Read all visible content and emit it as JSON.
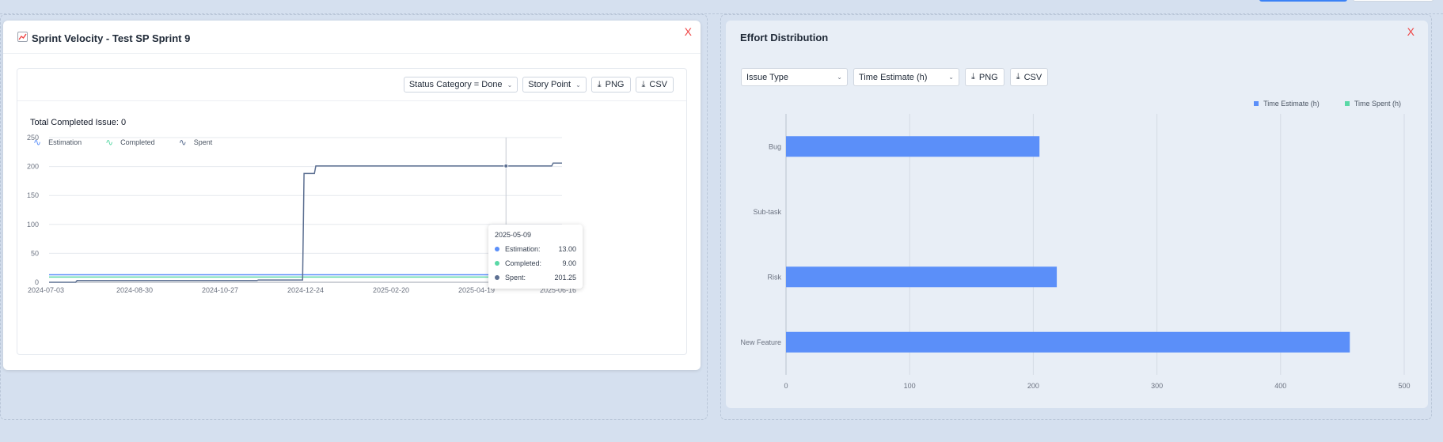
{
  "left_card": {
    "title": "Sprint Velocity - Test SP Sprint 9",
    "title_icon": "chart-increasing-icon",
    "close_label": "X",
    "filters": {
      "status": "Status Category = Done",
      "metric": "Story Point"
    },
    "png_label": "PNG",
    "csv_label": "CSV",
    "total_label": "Total Completed Issue: 0"
  },
  "right_card": {
    "title": "Effort Distribution",
    "close_label": "X",
    "filters": {
      "group": "Issue Type",
      "metric": "Time Estimate (h)"
    },
    "png_label": "PNG",
    "csv_label": "CSV"
  },
  "tooltip": {
    "date": "2025-05-09",
    "rows": [
      {
        "label": "Estimation:",
        "value": "13.00",
        "color": "#5b8ff9"
      },
      {
        "label": "Completed:",
        "value": "9.00",
        "color": "#5ad8a6"
      },
      {
        "label": "Spent:",
        "value": "201.25",
        "color": "#5d7092"
      }
    ]
  },
  "chart_data": [
    {
      "type": "line",
      "title": "Total Completed Issue: 0",
      "x_ticks": [
        "2024-07-03",
        "2024-08-30",
        "2024-10-27",
        "2024-12-24",
        "2025-02-20",
        "2025-04-19",
        "2025-06-16"
      ],
      "y_ticks": [
        "0",
        "50",
        "100",
        "150",
        "200",
        "250"
      ],
      "ylim": [
        0,
        250
      ],
      "xlim": [
        "2024-07-03",
        "2025-06-16"
      ],
      "legend": "top-left",
      "series": [
        {
          "name": "Estimation",
          "color": "#5b8ff9",
          "points": [
            [
              "2024-07-03",
              13
            ],
            [
              "2025-06-16",
              13
            ]
          ]
        },
        {
          "name": "Completed",
          "color": "#5ad8a6",
          "points": [
            [
              "2024-07-03",
              9
            ],
            [
              "2025-06-16",
              9
            ]
          ]
        },
        {
          "name": "Spent",
          "color": "#5d7092",
          "points": [
            [
              "2024-07-03",
              0
            ],
            [
              "2024-07-21",
              0
            ],
            [
              "2024-07-22",
              3
            ],
            [
              "2024-11-21",
              3
            ],
            [
              "2024-11-22",
              4
            ],
            [
              "2024-12-22",
              4
            ],
            [
              "2024-12-23",
              188
            ],
            [
              "2024-12-30",
              188
            ],
            [
              "2024-12-31",
              201
            ],
            [
              "2025-06-09",
              201
            ],
            [
              "2025-06-10",
              206
            ],
            [
              "2025-06-16",
              206
            ]
          ]
        }
      ],
      "highlight_date": "2025-05-09"
    },
    {
      "type": "bar",
      "orientation": "horizontal",
      "categories": [
        "Bug",
        "Sub-task",
        "Risk",
        "New Feature"
      ],
      "x_ticks": [
        "0",
        "100",
        "200",
        "300",
        "400",
        "500"
      ],
      "xlim": [
        0,
        500
      ],
      "legend": "top-right",
      "series": [
        {
          "name": "Time Estimate (h)",
          "color": "#5b8ff9",
          "values": [
            205,
            0,
            219,
            456
          ]
        },
        {
          "name": "Time Spent (h)",
          "color": "#5ad8a6",
          "values": [
            0,
            0,
            0,
            0
          ]
        }
      ]
    }
  ]
}
